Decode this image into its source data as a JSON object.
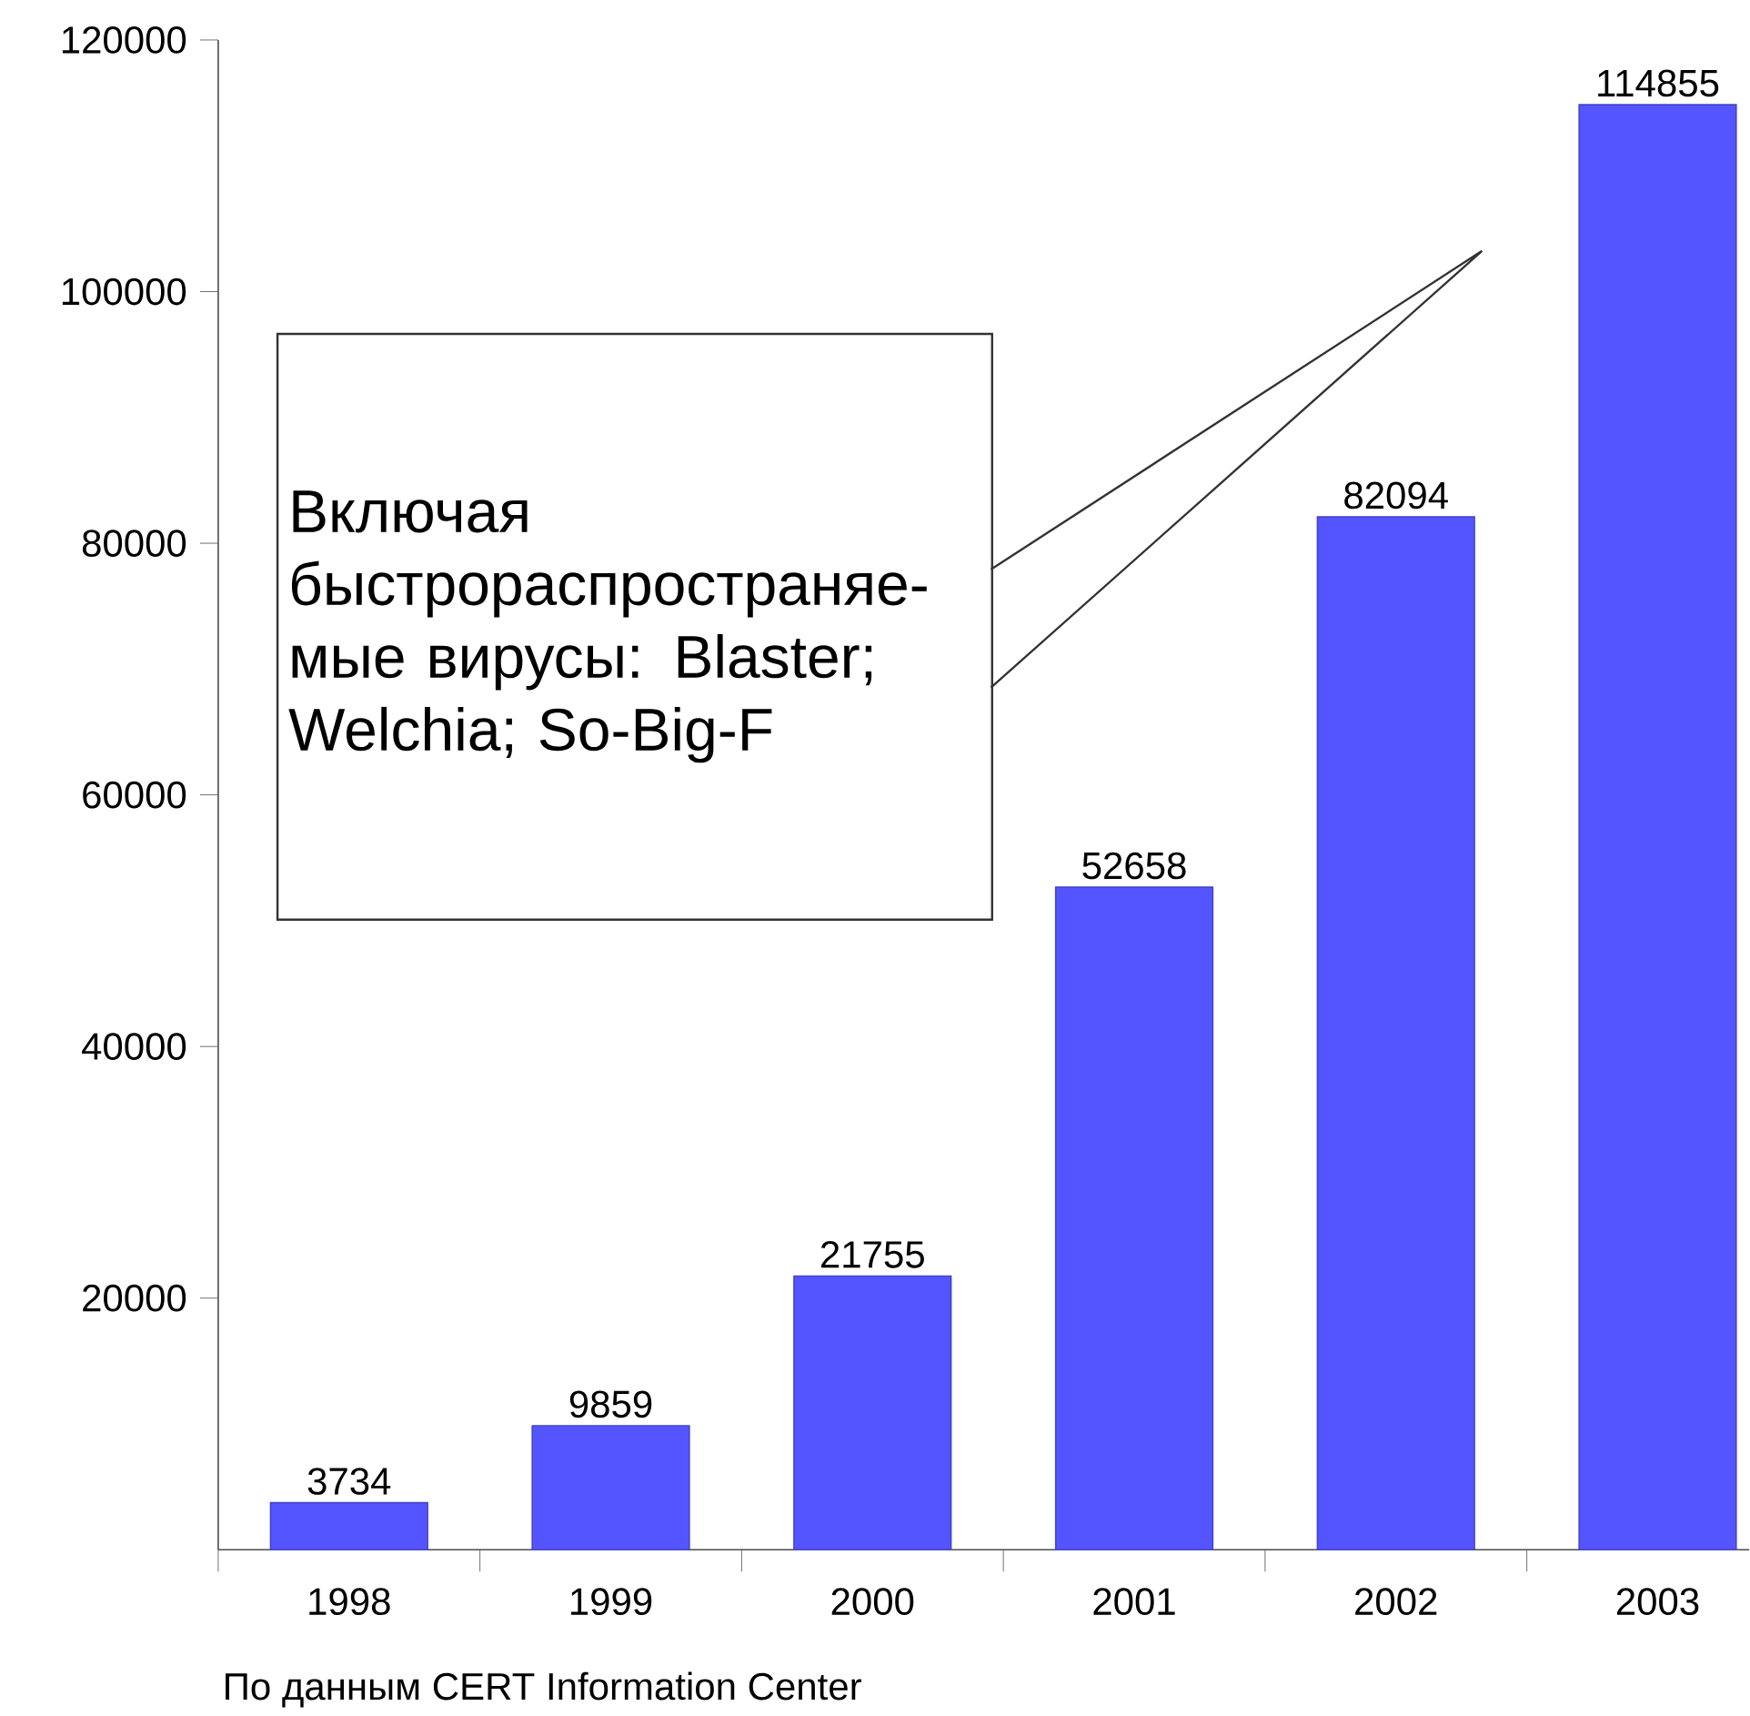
{
  "chart_data": {
    "type": "bar",
    "categories": [
      "1998",
      "1999",
      "2000",
      "2001",
      "2002",
      "2003"
    ],
    "values": [
      3734,
      9859,
      21755,
      52658,
      82094,
      114855
    ],
    "color": "#5555ff",
    "ylim": [
      0,
      120000
    ],
    "yticks": [
      20000,
      40000,
      60000,
      80000,
      100000,
      120000
    ],
    "data_labels": true,
    "annotations": [
      "Включая быстрораспространяе-мые вирусы: Blaster; Welchia; So-Big-F",
      "По данным CERT Information Center"
    ]
  }
}
